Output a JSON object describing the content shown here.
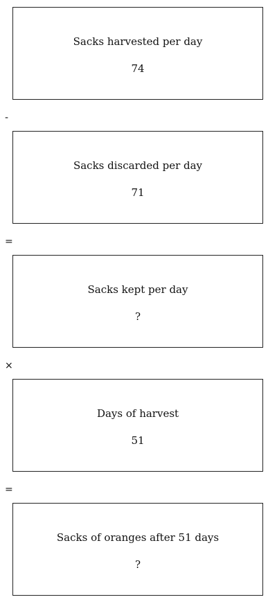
{
  "steps": [
    {
      "label": "Sacks harvested per day",
      "value": "74"
    },
    {
      "label": "Sacks discarded per day",
      "value": "71"
    },
    {
      "label": "Sacks kept per day",
      "value": "?"
    },
    {
      "label": "Days of harvest",
      "value": "51"
    },
    {
      "label": "Sacks of oranges after 51 days",
      "value": "?"
    }
  ],
  "operators": [
    "-",
    "=",
    "×",
    "="
  ]
}
